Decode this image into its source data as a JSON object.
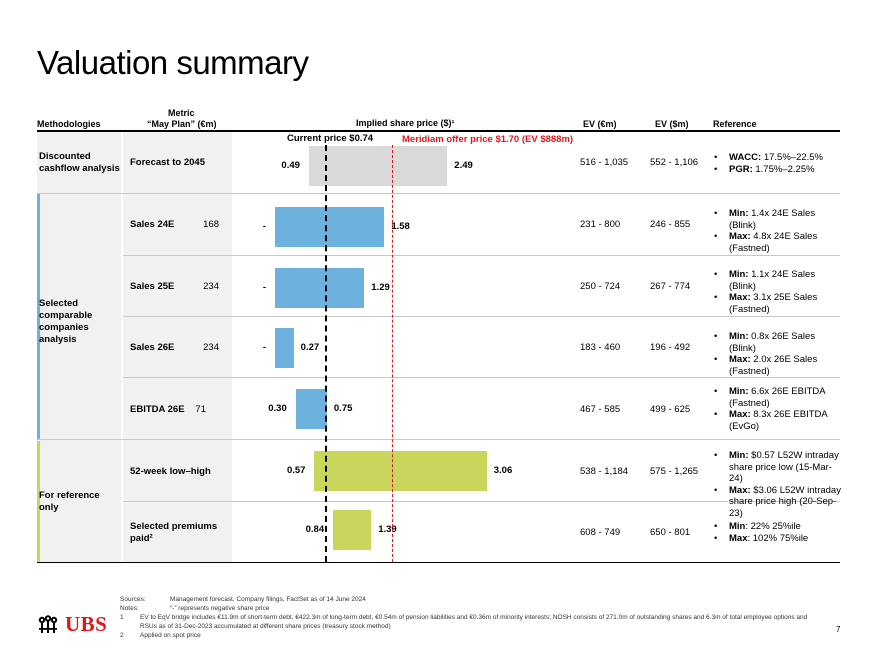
{
  "title": "Valuation summary",
  "headers": {
    "methodologies": "Methodologies",
    "metric_top": "Metric",
    "metric_bottom": "“May Plan” (€m)",
    "implied": "Implied share price ($)¹",
    "ev_eur": "EV (€m)",
    "ev_usd": "EV ($m)",
    "reference": "Reference"
  },
  "markers": {
    "current_label": "Current price $0.74",
    "current_value": 0.74,
    "offer_label": "Meridiam offer price $1.70 (EV $888m)",
    "offer_value": 1.7
  },
  "groups": {
    "dcf": "Discounted cashflow analysis",
    "comparable": "Selected comparable companies analysis",
    "reference": "For reference only"
  },
  "colors": {
    "dcf": "#d9d9d9",
    "comparable": "#6db2df",
    "reference": "#c9d65b",
    "offer": "#e0161b",
    "accent_red": "#e0161b"
  },
  "rows": [
    {
      "metric": "Forecast to 2045",
      "value": "",
      "low": 0.49,
      "high": 2.49,
      "low_label": "0.49",
      "high_label": "2.49",
      "ev_eur": "516 - 1,035",
      "ev_usd": "552 - 1,106",
      "refs": [
        {
          "bold": "WACC:",
          "text": " 17.5%–22.5%"
        },
        {
          "bold": "PGR:",
          "text": "  1.75%–2.25%"
        }
      ]
    },
    {
      "metric": "Sales 24E",
      "value": "168",
      "low": 0,
      "high": 1.58,
      "low_label": "-",
      "high_label": "1.58",
      "ev_eur": "231 - 800",
      "ev_usd": "246 - 855",
      "refs": [
        {
          "bold": "Min:",
          "text": " 1.4x 24E Sales (Blink)"
        },
        {
          "bold": "Max:",
          "text": " 4.8x 24E Sales (Fastned)"
        }
      ]
    },
    {
      "metric": "Sales 25E",
      "value": "234",
      "low": 0,
      "high": 1.29,
      "low_label": "-",
      "high_label": "1.29",
      "ev_eur": "250 - 724",
      "ev_usd": "267 - 774",
      "refs": [
        {
          "bold": "Min:",
          "text": " 1.1x 24E Sales (Blink)"
        },
        {
          "bold": "Max:",
          "text": " 3.1x 25E Sales (Fastned)"
        }
      ]
    },
    {
      "metric": "Sales 26E",
      "value": "234",
      "low": 0,
      "high": 0.27,
      "low_label": "-",
      "high_label": "0.27",
      "ev_eur": "183 - 460",
      "ev_usd": "196 - 492",
      "refs": [
        {
          "bold": "Min:",
          "text": " 0.8x 26E Sales (Blink)"
        },
        {
          "bold": "Max:",
          "text": " 2.0x 26E Sales (Fastned)"
        }
      ]
    },
    {
      "metric": "EBITDA 26E",
      "value": "71",
      "low": 0.3,
      "high": 0.75,
      "low_label": "0.30",
      "high_label": "0.75",
      "ev_eur": "467 - 585",
      "ev_usd": "499 - 625",
      "refs": [
        {
          "bold": "Min:",
          "text": " 6.6x 26E EBITDA (Fastned)"
        },
        {
          "bold": "Max:",
          "text": " 8.3x 26E EBITDA (EvGo)"
        }
      ]
    },
    {
      "metric": "52-week low–high",
      "value": "",
      "low": 0.57,
      "high": 3.06,
      "low_label": "0.57",
      "high_label": "3.06",
      "ev_eur": "538 - 1,184",
      "ev_usd": "575 - 1,265",
      "refs": [
        {
          "bold": "Min:",
          "text": " $0.57 L52W intraday share price low (15-Mar-24)"
        },
        {
          "bold": "Max:",
          "text": " $3.06 L52W intraday share price high (20-Sep-23)"
        }
      ]
    },
    {
      "metric": "Selected premiums paid²",
      "value": "",
      "low": 0.84,
      "high": 1.39,
      "low_label": "0.84",
      "high_label": "1.39",
      "ev_eur": "608 - 749",
      "ev_usd": "650 - 801",
      "refs": [
        {
          "bold": "Min",
          "text": ": 22% 25%ile"
        },
        {
          "bold": "Max",
          "text": ": 102% 75%ile"
        }
      ]
    }
  ],
  "footnotes": {
    "sources_key": "Sources:",
    "sources": "Management forecast, Company filings, FactSet as of 14 June 2024",
    "notes_key": "Notes:",
    "notes": "“-” represents negative share price",
    "n1_key": "1",
    "n1_line1": "EV to EqV bridge includes €11.9m of short-term debt, €422.3m of long-term debt, €0.54m of pension liabilities and €0.36m of minority interests; NOSH consists of 271.0m of outstanding shares and 6.3m of total employee options and",
    "n1_line2": "RSUs as of 31-Dec-2023 accumulated at different share prices (treasury stock method)",
    "n2_key": "2",
    "n2": "Applied on spot price"
  },
  "logo": "UBS",
  "page_number": "7"
}
